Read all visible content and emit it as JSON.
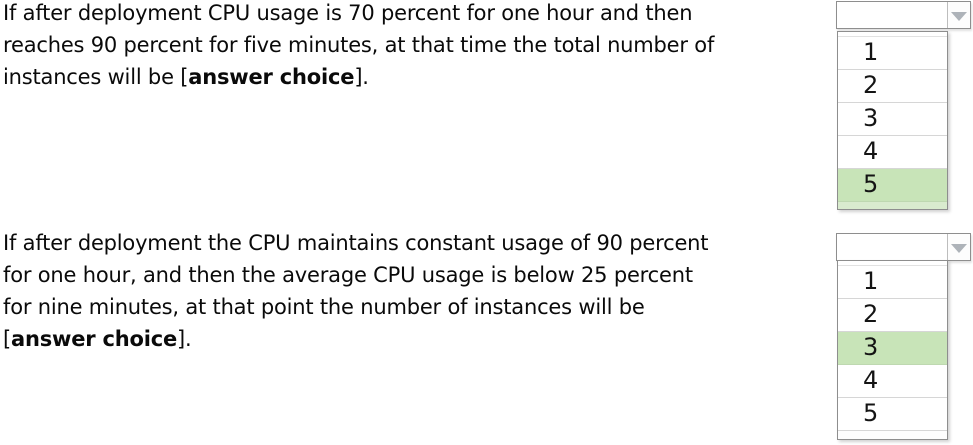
{
  "colors": {
    "highlight_green": "#c8e4b8",
    "highlight_green_light": "#d9ebce"
  },
  "question1": {
    "line1": "If after deployment CPU usage is 70 percent for one hour and then",
    "line2": "reaches 90 percent for five minutes, at that time the total number of",
    "line3_prefix": "instances will be [",
    "line3_bold": "answer choice",
    "line3_suffix": "]."
  },
  "question2": {
    "line1": "If after deployment the CPU maintains constant usage of 90 percent",
    "line2": "for one hour, and then the average CPU usage is below 25 percent",
    "line3": "for nine minutes, at that point the number of instances will be",
    "line4_prefix": "[",
    "line4_bold": "answer choice",
    "line4_suffix": "]."
  },
  "dropdown1": {
    "value": "",
    "options": [
      "1",
      "2",
      "3",
      "4",
      "5"
    ],
    "selected_index": 4,
    "selected_option": "5"
  },
  "dropdown2": {
    "value": "",
    "options": [
      "1",
      "2",
      "3",
      "4",
      "5"
    ],
    "selected_index": 2,
    "selected_option": "3"
  }
}
